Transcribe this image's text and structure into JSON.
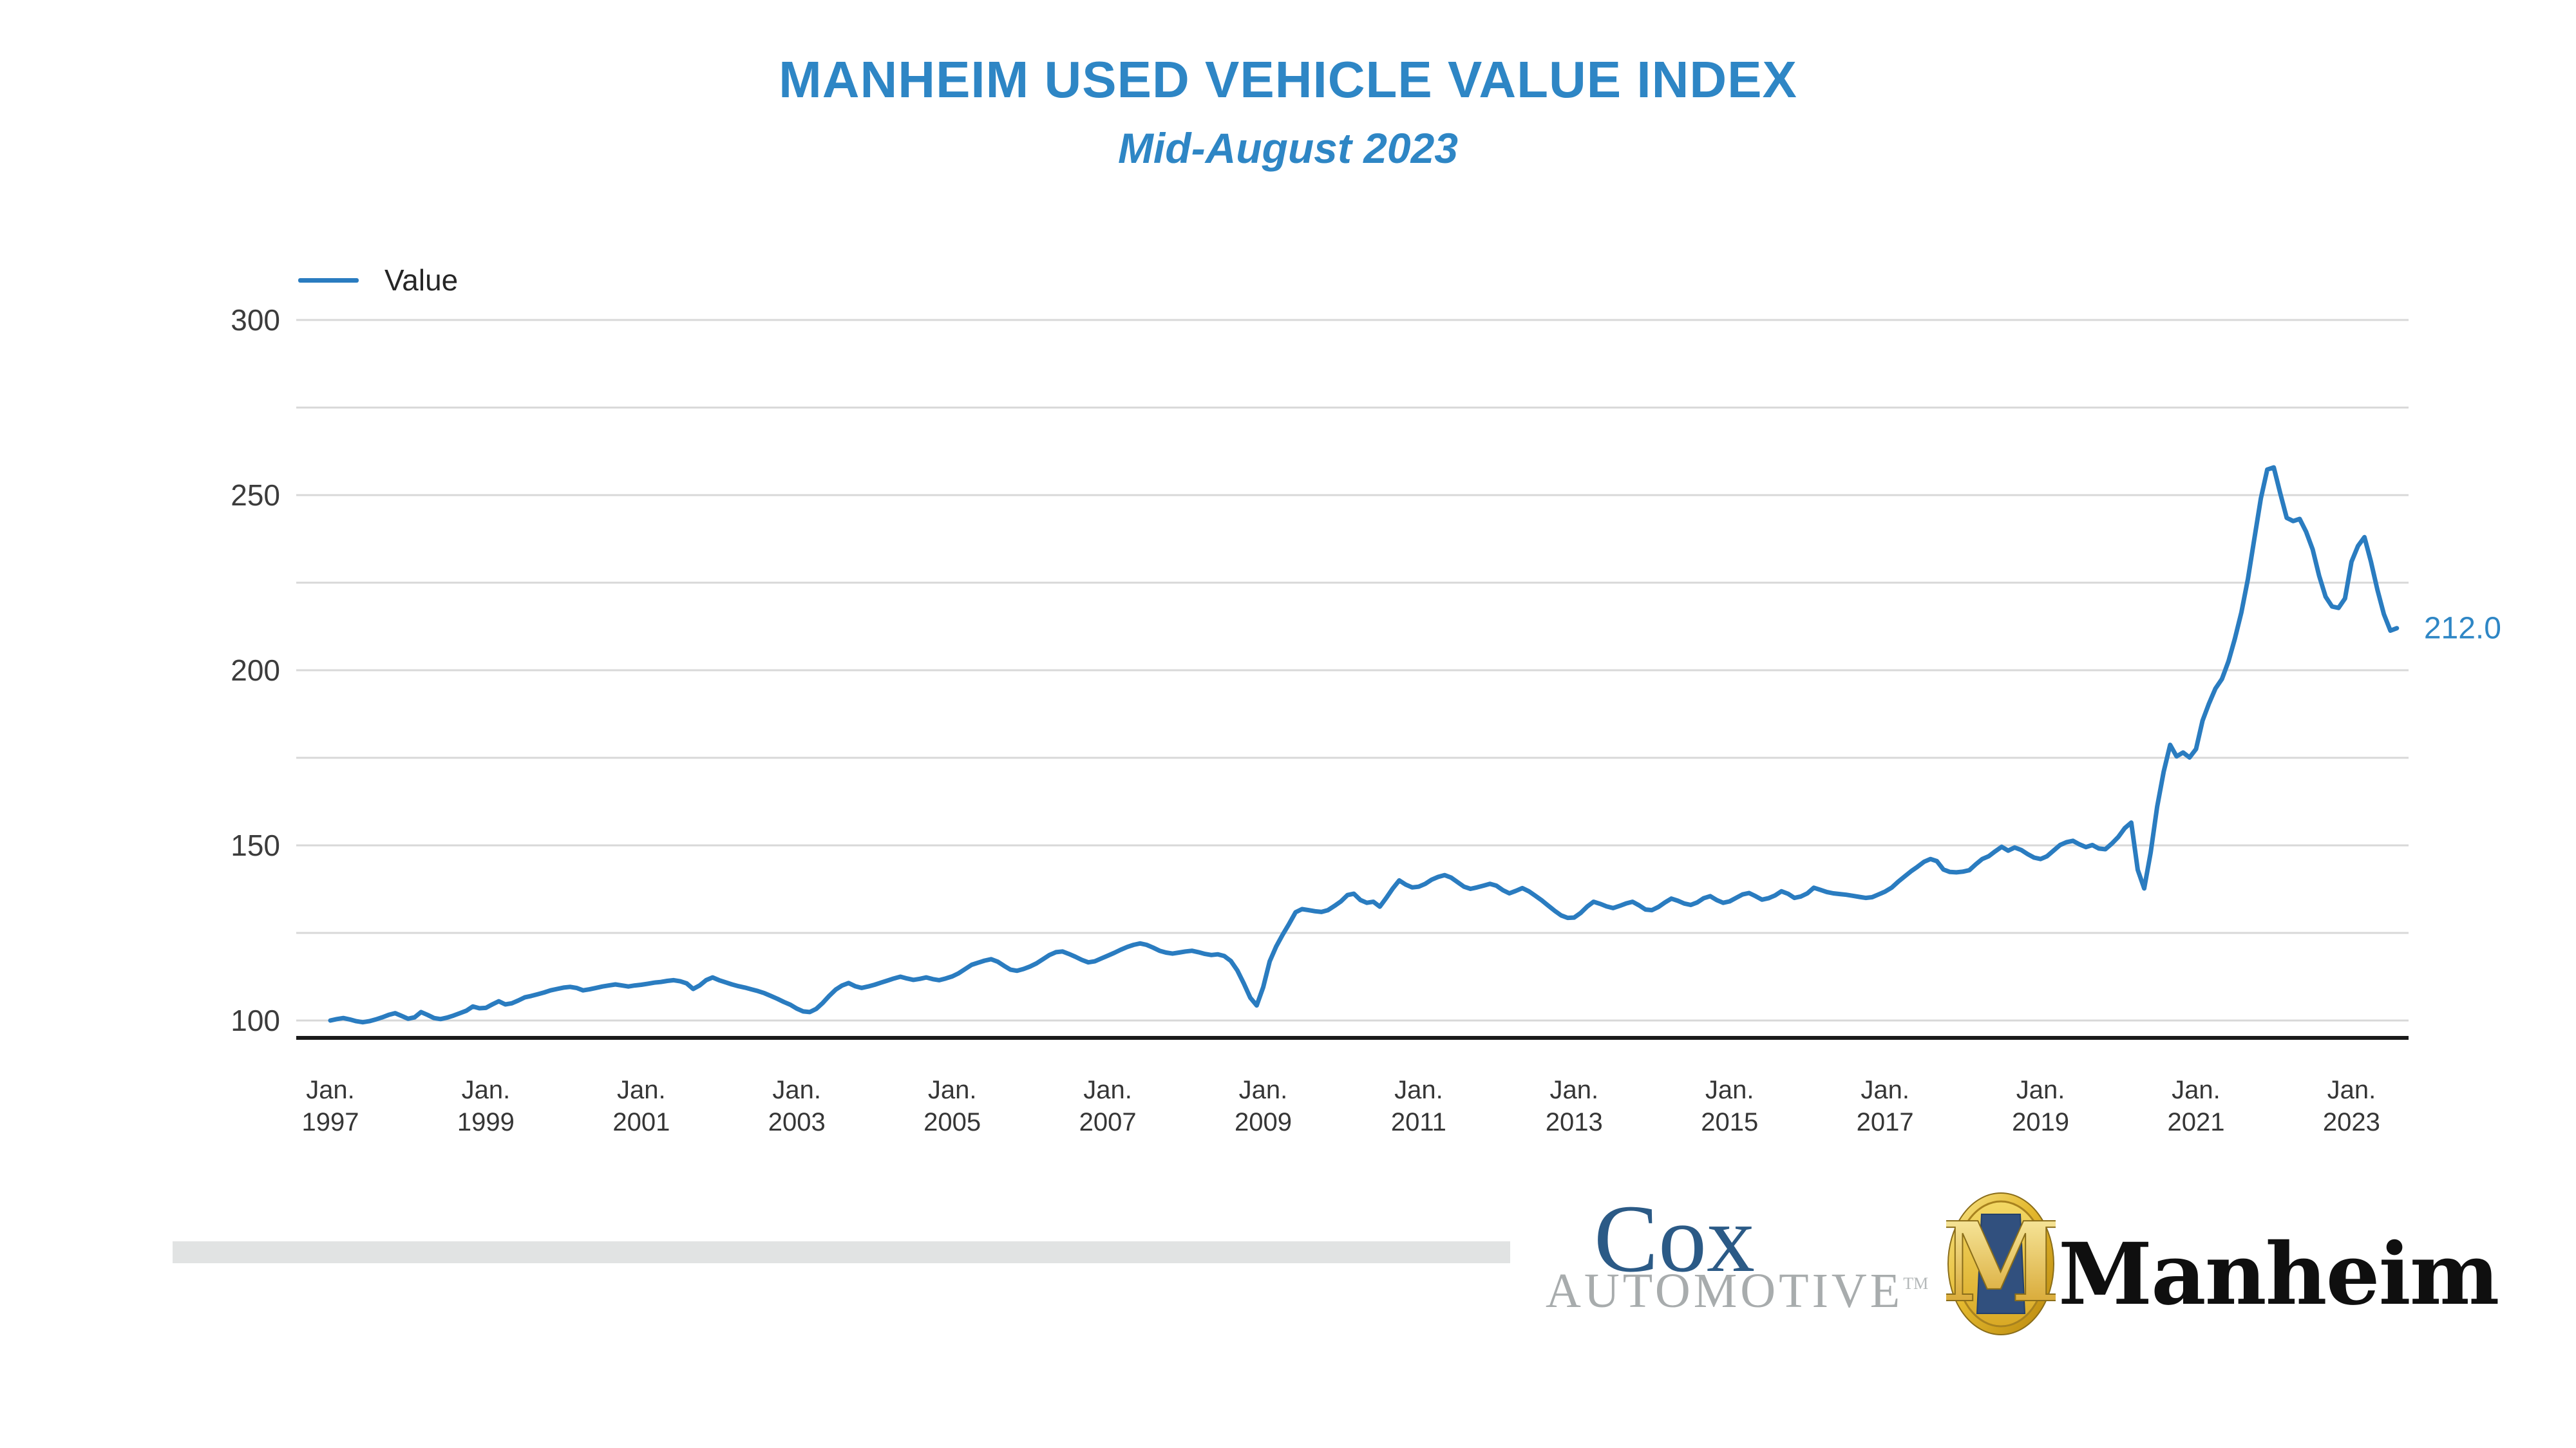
{
  "header": {
    "title": "MANHEIM USED VEHICLE VALUE INDEX",
    "subtitle": "Mid-August 2023"
  },
  "legend": {
    "label": "Value"
  },
  "last_value_label": "212.0",
  "colors": {
    "line_blue": "#2a7cc0",
    "title_blue": "#2e86c5",
    "gridline_gray": "#d8d8d8",
    "axis_black": "#1a1a1a",
    "cox_blue": "#2b5a86",
    "cox_gray": "#a8acad",
    "manheim_gold": "#d9a925",
    "divider_gray": "#e1e3e3"
  },
  "y_axis": {
    "major_tick_labels": [
      "300",
      "250",
      "200",
      "150",
      "100"
    ],
    "major_tick_values": [
      300,
      250,
      200,
      150,
      100
    ],
    "gridline_values": [
      300,
      275,
      250,
      225,
      200,
      175,
      150,
      125,
      100
    ]
  },
  "x_axis": {
    "month_abbrev": "Jan.",
    "tick_years": [
      "1997",
      "1999",
      "2001",
      "2003",
      "2005",
      "2007",
      "2009",
      "2011",
      "2013",
      "2015",
      "2017",
      "2019",
      "2021",
      "2023"
    ]
  },
  "footer": {
    "cox_line1": "Cox",
    "cox_line2": "AUTOMOTIVE",
    "cox_tm": "TM",
    "manheim_monogram": "M",
    "manheim_text": "Manheim"
  },
  "chart_data": {
    "type": "line",
    "title": "MANHEIM USED VEHICLE VALUE INDEX",
    "subtitle": "Mid-August 2023",
    "series_name": "Value",
    "frequency": "monthly",
    "x_start": "1997-01",
    "x_end": "2023-08",
    "x_tick_labels": [
      "Jan. 1997",
      "Jan. 1999",
      "Jan. 2001",
      "Jan. 2003",
      "Jan. 2005",
      "Jan. 2007",
      "Jan. 2009",
      "Jan. 2011",
      "Jan. 2013",
      "Jan. 2015",
      "Jan. 2017",
      "Jan. 2019",
      "Jan. 2021",
      "Jan. 2023"
    ],
    "ylabel": "",
    "xlabel": "",
    "ylim": [
      95,
      300
    ],
    "grid": true,
    "legend_position": "top-left",
    "last_value": 212.0,
    "values": [
      100.0,
      100.4,
      100.7,
      100.3,
      99.8,
      99.5,
      99.8,
      100.3,
      100.9,
      101.6,
      102.1,
      101.3,
      100.5,
      100.9,
      102.4,
      101.6,
      100.7,
      100.4,
      100.8,
      101.4,
      102.1,
      102.8,
      104.0,
      103.5,
      103.6,
      104.6,
      105.5,
      104.6,
      104.9,
      105.7,
      106.6,
      107.0,
      107.5,
      108.0,
      108.6,
      109.0,
      109.4,
      109.6,
      109.3,
      108.6,
      108.9,
      109.3,
      109.7,
      110.0,
      110.3,
      110.0,
      109.7,
      110.0,
      110.2,
      110.5,
      110.8,
      111.0,
      111.3,
      111.5,
      111.2,
      110.6,
      109.0,
      110.0,
      111.5,
      112.3,
      111.5,
      110.9,
      110.3,
      109.8,
      109.4,
      108.9,
      108.4,
      107.8,
      107.0,
      106.2,
      105.3,
      104.5,
      103.4,
      102.6,
      102.4,
      103.3,
      105.0,
      107.0,
      108.8,
      110.0,
      110.7,
      109.8,
      109.3,
      109.7,
      110.2,
      110.8,
      111.4,
      112.0,
      112.5,
      112.0,
      111.6,
      111.9,
      112.3,
      111.8,
      111.5,
      112.0,
      112.6,
      113.5,
      114.7,
      115.9,
      116.5,
      117.1,
      117.5,
      116.8,
      115.6,
      114.5,
      114.2,
      114.7,
      115.4,
      116.3,
      117.5,
      118.7,
      119.5,
      119.7,
      119.0,
      118.2,
      117.3,
      116.6,
      116.9,
      117.7,
      118.5,
      119.3,
      120.2,
      121.0,
      121.6,
      122.0,
      121.6,
      120.8,
      119.9,
      119.4,
      119.1,
      119.4,
      119.7,
      119.9,
      119.5,
      119.0,
      118.7,
      118.9,
      118.4,
      117.0,
      114.3,
      110.6,
      106.5,
      104.3,
      109.5,
      116.9,
      121.1,
      124.5,
      127.6,
      130.9,
      131.8,
      131.5,
      131.2,
      131.0,
      131.5,
      132.7,
      134.0,
      135.8,
      136.2,
      134.4,
      133.6,
      133.9,
      132.5,
      135.0,
      137.7,
      140.0,
      138.8,
      138.0,
      138.2,
      139.0,
      140.2,
      141.0,
      141.5,
      140.8,
      139.5,
      138.2,
      137.6,
      138.0,
      138.5,
      139.0,
      138.5,
      137.2,
      136.3,
      137.0,
      137.8,
      136.9,
      135.6,
      134.3,
      132.8,
      131.3,
      130.0,
      129.3,
      129.4,
      130.7,
      132.5,
      133.9,
      133.3,
      132.6,
      132.1,
      132.7,
      133.4,
      133.9,
      132.9,
      131.7,
      131.5,
      132.4,
      133.7,
      134.8,
      134.2,
      133.4,
      133.0,
      133.7,
      134.9,
      135.5,
      134.4,
      133.6,
      134.0,
      135.0,
      136.0,
      136.4,
      135.5,
      134.5,
      134.9,
      135.7,
      136.9,
      136.2,
      135.0,
      135.4,
      136.3,
      137.9,
      137.3,
      136.7,
      136.3,
      136.1,
      135.9,
      135.6,
      135.3,
      135.0,
      135.2,
      136.0,
      136.8,
      137.9,
      139.6,
      141.1,
      142.6,
      143.9,
      145.3,
      146.1,
      145.5,
      143.1,
      142.4,
      142.3,
      142.5,
      142.9,
      144.6,
      146.1,
      146.9,
      148.3,
      149.6,
      148.5,
      149.4,
      148.7,
      147.5,
      146.5,
      146.1,
      146.9,
      148.5,
      150.1,
      150.9,
      151.3,
      150.3,
      149.5,
      150.1,
      149.1,
      148.9,
      150.5,
      152.4,
      154.9,
      156.5,
      143.0,
      137.7,
      148.0,
      161.0,
      171.0,
      178.7,
      175.4,
      176.5,
      175.1,
      177.5,
      185.6,
      190.5,
      194.8,
      197.5,
      202.5,
      209.0,
      216.5,
      226.0,
      237.5,
      249.0,
      257.3,
      257.9,
      250.5,
      243.5,
      242.6,
      243.2,
      239.5,
      234.5,
      227.0,
      221.0,
      218.2,
      217.8,
      220.5,
      231.0,
      235.5,
      238.0,
      231.0,
      223.0,
      216.0,
      211.3,
      212.0
    ]
  }
}
